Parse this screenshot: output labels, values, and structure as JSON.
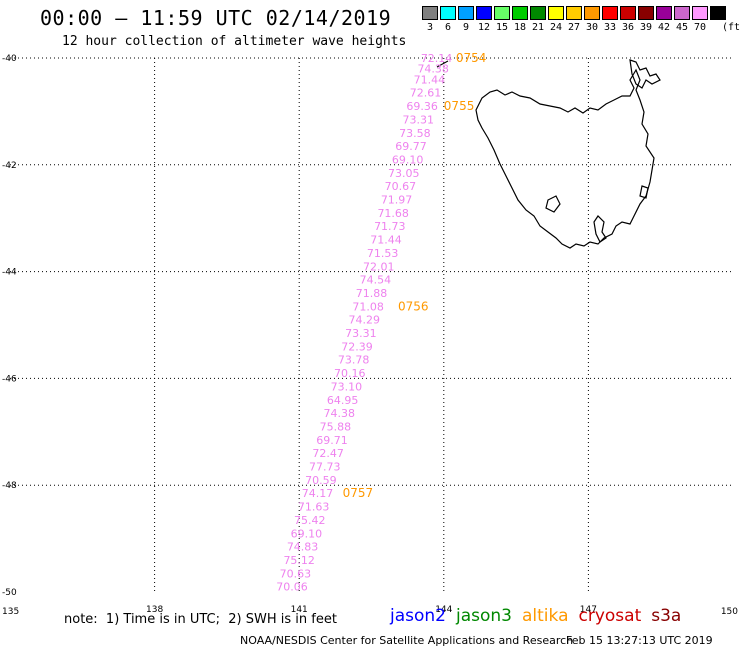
{
  "title": "00:00 – 11:59 UTC 02/14/2019",
  "subtitle": "12 hour collection of altimeter wave heights",
  "colorbar": {
    "unit": "(ft)",
    "levels": [
      {
        "label": "3",
        "color": "#808080"
      },
      {
        "label": "6",
        "color": "#00ffff"
      },
      {
        "label": "9",
        "color": "#00a0ff"
      },
      {
        "label": "12",
        "color": "#0000ff"
      },
      {
        "label": "15",
        "color": "#66ff66"
      },
      {
        "label": "18",
        "color": "#00cc00"
      },
      {
        "label": "21",
        "color": "#008800"
      },
      {
        "label": "24",
        "color": "#ffff00"
      },
      {
        "label": "27",
        "color": "#ffcc00"
      },
      {
        "label": "30",
        "color": "#ff9900"
      },
      {
        "label": "33",
        "color": "#ff0000"
      },
      {
        "label": "36",
        "color": "#cc0000"
      },
      {
        "label": "39",
        "color": "#880000"
      },
      {
        "label": "42",
        "color": "#990099"
      },
      {
        "label": "45",
        "color": "#cc66cc"
      },
      {
        "label": "70",
        "color": "#ff99ff"
      },
      {
        "label": "",
        "color": "#000000"
      }
    ]
  },
  "map": {
    "lat_range": [
      -50,
      -40
    ],
    "lon_range": [
      135,
      150
    ],
    "lat_ticks": [
      "-40",
      "-42",
      "-44",
      "-46",
      "-48",
      "-50"
    ],
    "lon_ticks": [
      "135",
      "138",
      "141",
      "144",
      "147",
      "150"
    ],
    "grid_lon": [
      138,
      141,
      144,
      147
    ],
    "grid_lat": [
      -40,
      -42,
      -44,
      -46,
      -48
    ],
    "obs_color": "#ee82ee",
    "time_color": "#ff9900"
  },
  "observations": [
    {
      "lon": 143.85,
      "lat": -40.0,
      "swh": "72.14"
    },
    {
      "lon": 143.78,
      "lat": -40.2,
      "swh": "74.38"
    },
    {
      "lon": 143.7,
      "lat": -40.4,
      "swh": "71.44"
    },
    {
      "lon": 143.62,
      "lat": -40.65,
      "swh": "72.61"
    },
    {
      "lon": 143.55,
      "lat": -40.9,
      "swh": "69.36"
    },
    {
      "lon": 143.47,
      "lat": -41.15,
      "swh": "73.31"
    },
    {
      "lon": 143.4,
      "lat": -41.4,
      "swh": "73.58"
    },
    {
      "lon": 143.32,
      "lat": -41.65,
      "swh": "69.77"
    },
    {
      "lon": 143.25,
      "lat": -41.9,
      "swh": "69.10"
    },
    {
      "lon": 143.17,
      "lat": -42.15,
      "swh": "73.05"
    },
    {
      "lon": 143.1,
      "lat": -42.4,
      "swh": "70.67"
    },
    {
      "lon": 143.02,
      "lat": -42.65,
      "swh": "71.97"
    },
    {
      "lon": 142.95,
      "lat": -42.9,
      "swh": "71.68"
    },
    {
      "lon": 142.88,
      "lat": -43.15,
      "swh": "71.73"
    },
    {
      "lon": 142.8,
      "lat": -43.4,
      "swh": "71.44"
    },
    {
      "lon": 142.73,
      "lat": -43.65,
      "swh": "71.53"
    },
    {
      "lon": 142.65,
      "lat": -43.9,
      "swh": "72.01"
    },
    {
      "lon": 142.58,
      "lat": -44.15,
      "swh": "74.54"
    },
    {
      "lon": 142.5,
      "lat": -44.4,
      "swh": "71.88"
    },
    {
      "lon": 142.43,
      "lat": -44.65,
      "swh": "71.08"
    },
    {
      "lon": 142.35,
      "lat": -44.9,
      "swh": "74.29"
    },
    {
      "lon": 142.28,
      "lat": -45.15,
      "swh": "73.31"
    },
    {
      "lon": 142.2,
      "lat": -45.4,
      "swh": "72.39"
    },
    {
      "lon": 142.13,
      "lat": -45.65,
      "swh": "73.78"
    },
    {
      "lon": 142.05,
      "lat": -45.9,
      "swh": "70.16"
    },
    {
      "lon": 141.98,
      "lat": -46.15,
      "swh": "73.10"
    },
    {
      "lon": 141.9,
      "lat": -46.4,
      "swh": "64.95"
    },
    {
      "lon": 141.83,
      "lat": -46.65,
      "swh": "74.38"
    },
    {
      "lon": 141.75,
      "lat": -46.9,
      "swh": "75.88"
    },
    {
      "lon": 141.68,
      "lat": -47.15,
      "swh": "69.71"
    },
    {
      "lon": 141.6,
      "lat": -47.4,
      "swh": "72.47"
    },
    {
      "lon": 141.53,
      "lat": -47.65,
      "swh": "77.73"
    },
    {
      "lon": 141.45,
      "lat": -47.9,
      "swh": "70.59"
    },
    {
      "lon": 141.38,
      "lat": -48.15,
      "swh": "74.17"
    },
    {
      "lon": 141.3,
      "lat": -48.4,
      "swh": "71.63"
    },
    {
      "lon": 141.22,
      "lat": -48.65,
      "swh": "75.42"
    },
    {
      "lon": 141.15,
      "lat": -48.9,
      "swh": "69.10"
    },
    {
      "lon": 141.07,
      "lat": -49.15,
      "swh": "74.83"
    },
    {
      "lon": 141.0,
      "lat": -49.4,
      "swh": "75.12"
    },
    {
      "lon": 140.92,
      "lat": -49.65,
      "swh": "70.63"
    },
    {
      "lon": 140.85,
      "lat": -49.9,
      "swh": "70.06"
    }
  ],
  "time_marks": [
    {
      "lon": 144.25,
      "lat": -40.0,
      "label": "0754"
    },
    {
      "lon": 144.0,
      "lat": -40.9,
      "label": "0755"
    },
    {
      "lon": 143.05,
      "lat": -44.65,
      "label": "0756"
    },
    {
      "lon": 141.9,
      "lat": -48.15,
      "label": "0757"
    }
  ],
  "note": "note:  1) Time is in UTC;  2) SWH is in feet",
  "missions": [
    {
      "label": "jason2",
      "color": "#0000ff"
    },
    {
      "label": "jason3",
      "color": "#008800"
    },
    {
      "label": "altika",
      "color": "#ff9900"
    },
    {
      "label": "cryosat",
      "color": "#cc0000"
    },
    {
      "label": "s3a",
      "color": "#880000"
    }
  ],
  "credit": "NOAA/NESDIS Center for Satellite Applications and Research",
  "timestamp": "Feb 15 13:27:13 UTC 2019"
}
